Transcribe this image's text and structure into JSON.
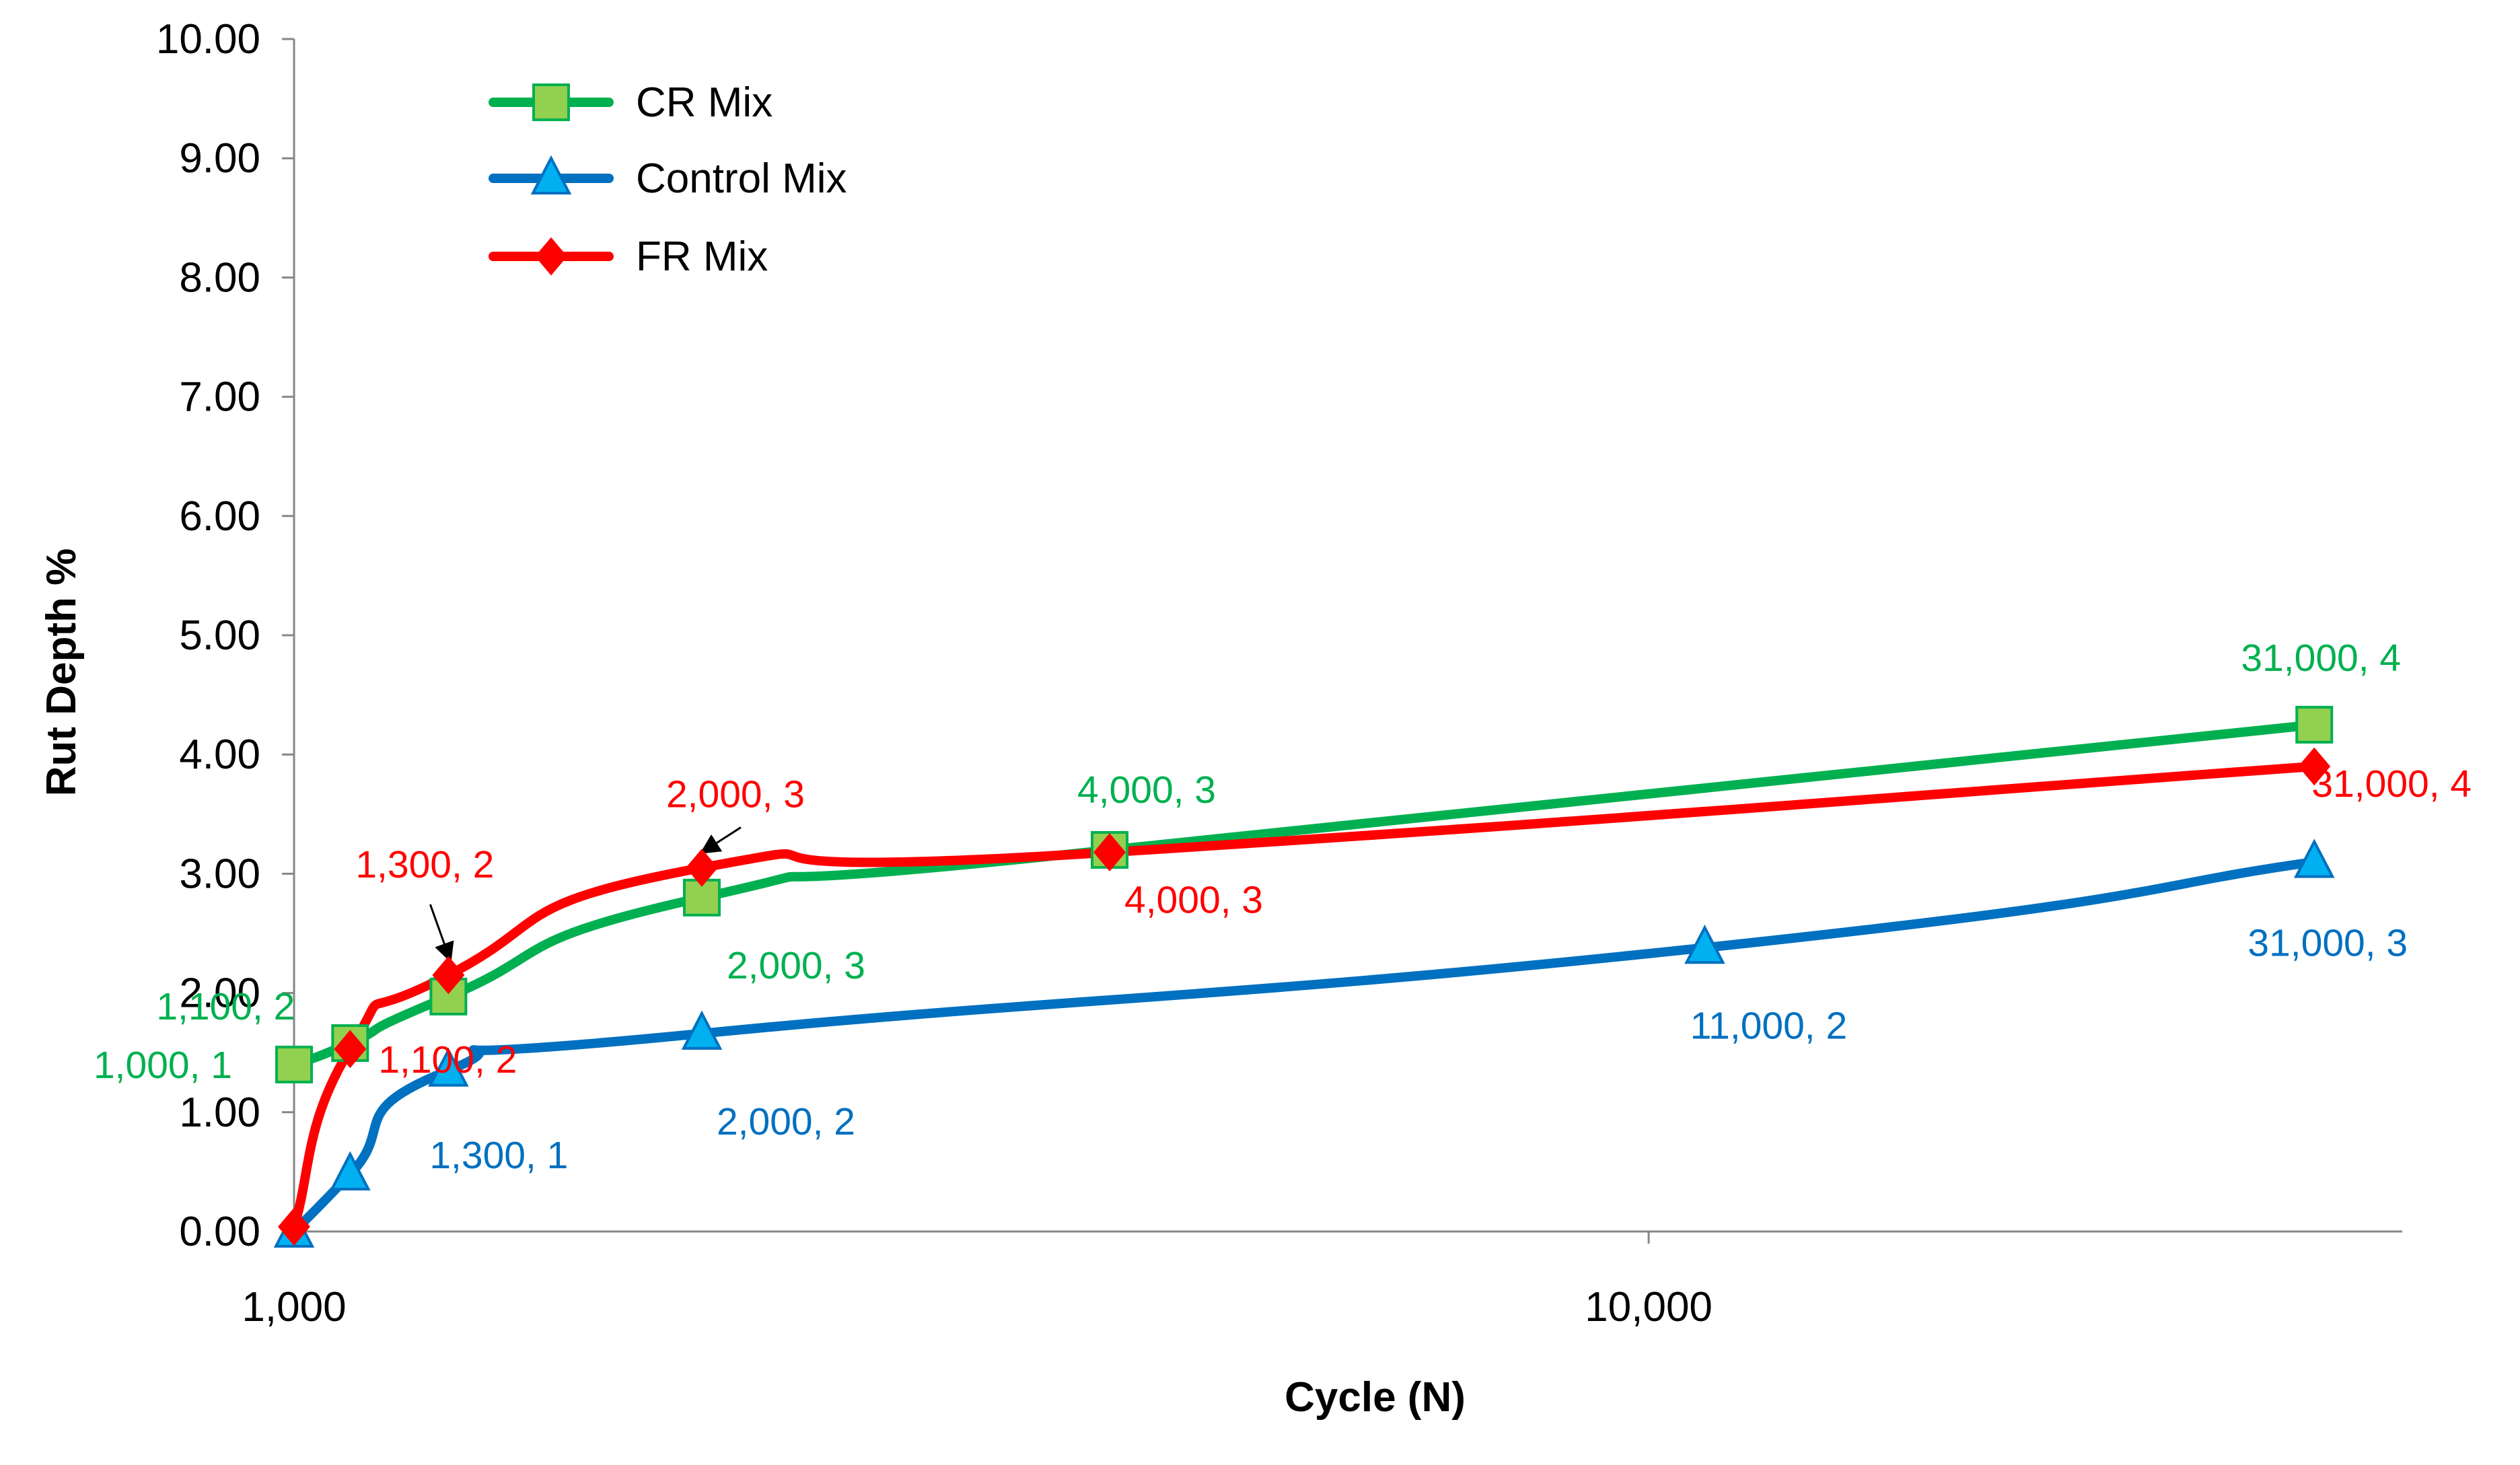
{
  "chart_data": {
    "type": "line",
    "title": "",
    "xlabel": "Cycle (N)",
    "ylabel": "Rut Depth %",
    "x_scale": "log",
    "xlim": [
      1000,
      36000
    ],
    "ylim": [
      0,
      10
    ],
    "x_ticks": [
      1000,
      10000
    ],
    "x_tick_labels": [
      "1,000",
      "10,000"
    ],
    "y_ticks": [
      0,
      1,
      2,
      3,
      4,
      5,
      6,
      7,
      8,
      9,
      10
    ],
    "y_tick_labels": [
      "0.00",
      "1.00",
      "2.00",
      "3.00",
      "4.00",
      "5.00",
      "6.00",
      "7.00",
      "8.00",
      "9.00",
      "10.00"
    ],
    "grid": false,
    "legend_position": "top-left",
    "smooth_lines": true,
    "series": [
      {
        "name": "CR Mix",
        "color": "#00b050",
        "marker": "square",
        "marker_color": "#92d050",
        "label_color": "#00b050",
        "x": [
          1000,
          1100,
          1300,
          2000,
          4000,
          31000
        ],
        "y": [
          1.4,
          1.58,
          1.97,
          2.8,
          3.2,
          4.25
        ],
        "labels": [
          "1,000, 1",
          "1,100, 2",
          "",
          "2,000, 3",
          "4,000, 3",
          "31,000, 4"
        ]
      },
      {
        "name": "Control Mix",
        "color": "#0070c0",
        "marker": "triangle",
        "marker_color": "#00b0f0",
        "label_color": "#0070c0",
        "x": [
          1000,
          1100,
          1300,
          2000,
          11000,
          31000
        ],
        "y": [
          0.0,
          0.48,
          1.35,
          1.66,
          2.38,
          3.1
        ],
        "labels": [
          "",
          "",
          "1,300, 1",
          "2,000, 2",
          "11,000, 2",
          "31,000, 3"
        ]
      },
      {
        "name": "FR Mix",
        "color": "#ff0000",
        "marker": "diamond",
        "marker_color": "#ff0000",
        "label_color": "#ff0000",
        "x": [
          1000,
          1100,
          1300,
          2000,
          4000,
          31000
        ],
        "y": [
          0.04,
          1.53,
          2.15,
          3.05,
          3.18,
          3.9
        ],
        "labels": [
          "",
          "1,100, 2",
          "1,300, 2",
          "2,000, 3",
          "4,000, 3",
          "31,000, 4"
        ]
      }
    ],
    "annotations": [
      "1,300, 2",
      "1,300, 2",
      "2,000, 3"
    ]
  }
}
